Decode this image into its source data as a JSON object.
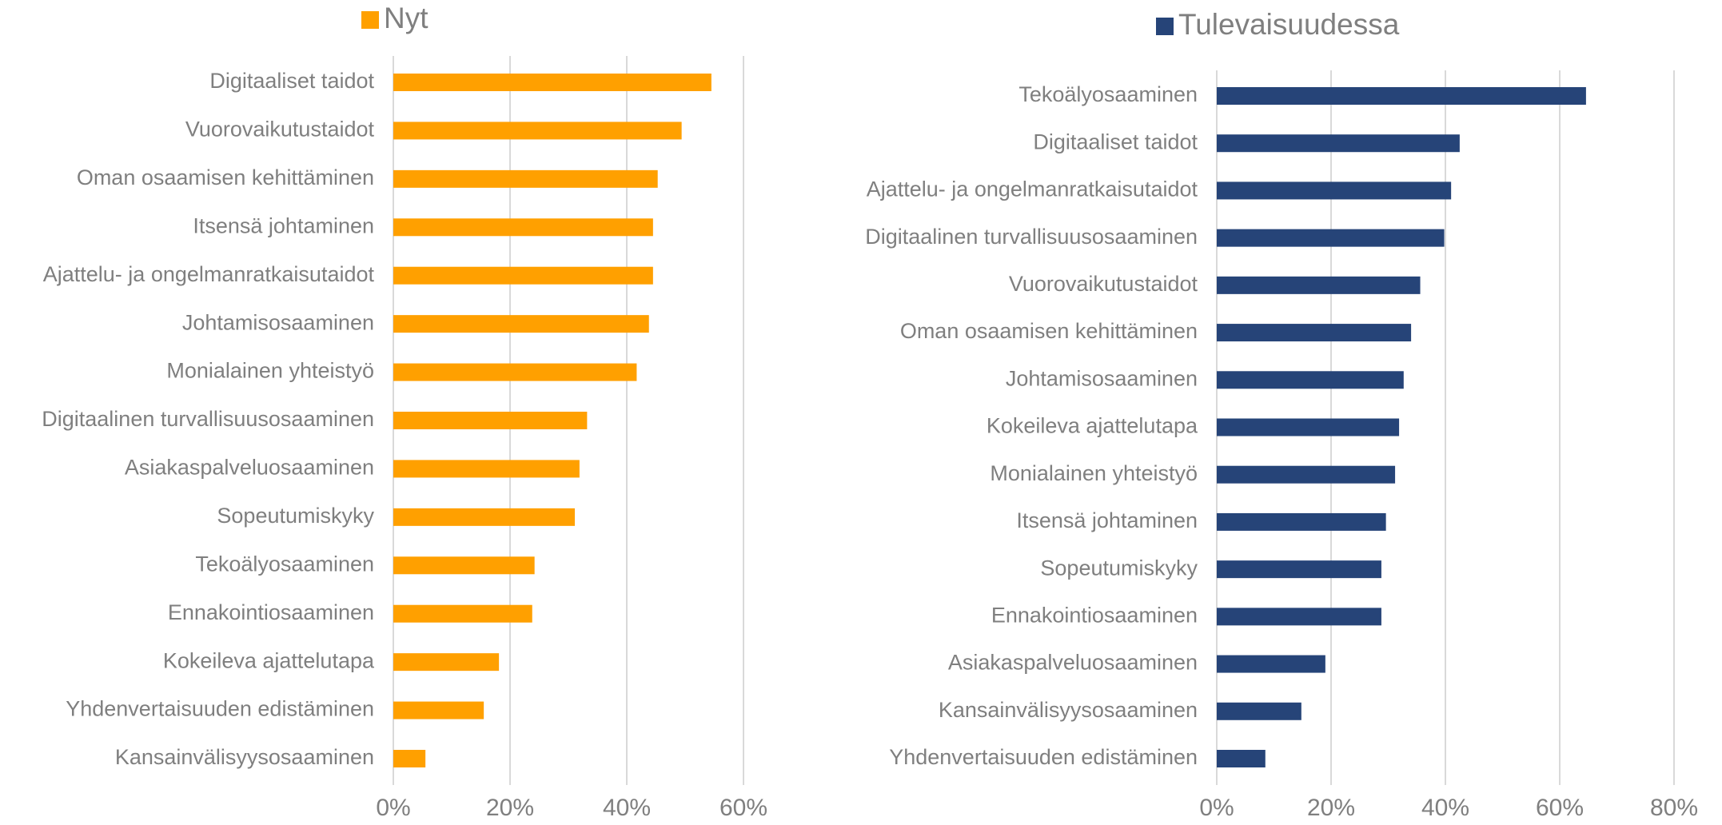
{
  "chart_data": [
    {
      "type": "barh",
      "categories": [
        "Digitaaliset taidot",
        "Vuorovaikutustaidot",
        "Oman osaamisen kehittäminen",
        "Itsensä johtaminen",
        "Ajattelu- ja ongelmanratkaisutaidot",
        "Johtamisosaaminen",
        "Monialainen yhteistyö",
        "Digitaalinen turvallisuusosaaminen",
        "Asiakaspalveluosaaminen",
        "Sopeutumiskyky",
        "Tekoälyosaaminen",
        "Ennakointiosaaminen",
        "Kokeileva ajattelutapa",
        "Yhdenvertaisuuden edistäminen",
        "Kansainvälisyysosaaminen"
      ],
      "series": [
        {
          "name": "Nyt",
          "color": "#ffa000",
          "values": [
            54.5,
            49.4,
            45.3,
            44.5,
            44.5,
            43.8,
            41.7,
            33.2,
            31.9,
            31.1,
            24.2,
            23.8,
            18.1,
            15.5,
            5.5
          ]
        }
      ],
      "xlim": [
        0,
        60
      ],
      "xticks": [
        {
          "value": 0,
          "label": "0%"
        },
        {
          "value": 20,
          "label": "20%"
        },
        {
          "value": 40,
          "label": "40%"
        },
        {
          "value": 60,
          "label": "60%"
        }
      ],
      "grid": true,
      "legend": "top"
    },
    {
      "type": "barh",
      "categories": [
        "Tekoälyosaaminen",
        "Digitaaliset taidot",
        "Ajattelu- ja ongelmanratkaisutaidot",
        "Digitaalinen turvallisuusosaaminen",
        "Vuorovaikutustaidot",
        "Oman osaamisen kehittäminen",
        "Johtamisosaaminen",
        "Kokeileva ajattelutapa",
        "Monialainen yhteistyö",
        "Itsensä johtaminen",
        "Sopeutumiskyky",
        "Ennakointiosaaminen",
        "Asiakaspalveluosaaminen",
        "Kansainvälisyysosaaminen",
        "Yhdenvertaisuuden edistäminen"
      ],
      "series": [
        {
          "name": "Tulevaisuudessa",
          "color": "#264478",
          "values": [
            64.6,
            42.5,
            41.0,
            39.8,
            35.6,
            34.0,
            32.7,
            31.9,
            31.2,
            29.6,
            28.8,
            28.8,
            19.0,
            14.8,
            8.5
          ]
        }
      ],
      "xlim": [
        0,
        80
      ],
      "xticks": [
        {
          "value": 0,
          "label": "0%"
        },
        {
          "value": 20,
          "label": "20%"
        },
        {
          "value": 40,
          "label": "40%"
        },
        {
          "value": 60,
          "label": "60%"
        },
        {
          "value": 80,
          "label": "80%"
        }
      ],
      "grid": true,
      "legend": "top"
    }
  ]
}
